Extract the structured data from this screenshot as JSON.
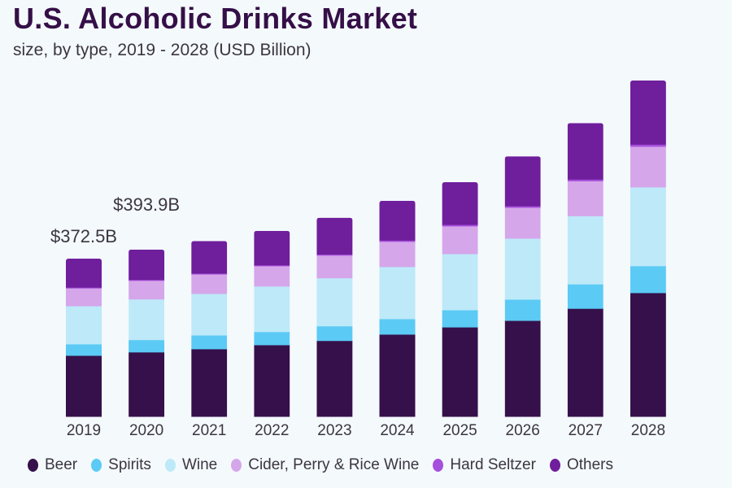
{
  "header": {
    "title": "U.S. Alcoholic Drinks Market",
    "subtitle": "size, by type, 2019 - 2028 (USD Billion)"
  },
  "chart_data": {
    "type": "bar",
    "stacked": true,
    "title": "U.S. Alcoholic Drinks Market",
    "subtitle": "size, by type, 2019 - 2028 (USD Billion)",
    "xlabel": "",
    "ylabel": "USD Billion",
    "grid": false,
    "legend_position": "bottom",
    "categories": [
      "2019",
      "2020",
      "2021",
      "2022",
      "2023",
      "2024",
      "2025",
      "2026",
      "2027",
      "2028"
    ],
    "series": [
      {
        "name": "Beer",
        "color": "#36104a",
        "values": [
          144.0,
          152.0,
          159.5,
          169.0,
          179.0,
          194.0,
          211.0,
          226.5,
          255.0,
          292.0
        ]
      },
      {
        "name": "Spirits",
        "color": "#5bcaf5",
        "values": [
          27.0,
          29.0,
          32.5,
          31.0,
          34.5,
          36.5,
          40.5,
          50.0,
          57.5,
          63.5
        ]
      },
      {
        "name": "Wine",
        "color": "#bde9f9",
        "values": [
          90.0,
          96.0,
          98.0,
          107.5,
          113.5,
          123.0,
          132.5,
          144.0,
          161.0,
          186.0
        ]
      },
      {
        "name": "Cider, Perry & Rice Wine",
        "color": "#d5a6ea",
        "values": [
          42.0,
          44.0,
          46.0,
          48.0,
          53.5,
          59.5,
          65.5,
          73.0,
          82.5,
          96.0
        ]
      },
      {
        "name": "Hard Seltzer",
        "color": "#a64fdc",
        "values": [
          2.0,
          2.0,
          2.0,
          2.0,
          2.5,
          3.0,
          3.5,
          3.5,
          4.0,
          5.0
        ]
      },
      {
        "name": "Others",
        "color": "#6f1e9c",
        "values": [
          67.5,
          70.9,
          76.0,
          80.5,
          86.0,
          93.0,
          100.0,
          117.0,
          132.5,
          150.5
        ]
      }
    ],
    "totals": [
      372.5,
      393.9,
      414.0,
      438.0,
      469.0,
      509.0,
      553.0,
      614.0,
      692.5,
      793.0
    ],
    "annotations": [
      {
        "category": "2019",
        "text": "$372.5B"
      },
      {
        "category": "2020",
        "text": "$393.9B"
      }
    ],
    "ylim": [
      0,
      800
    ]
  }
}
